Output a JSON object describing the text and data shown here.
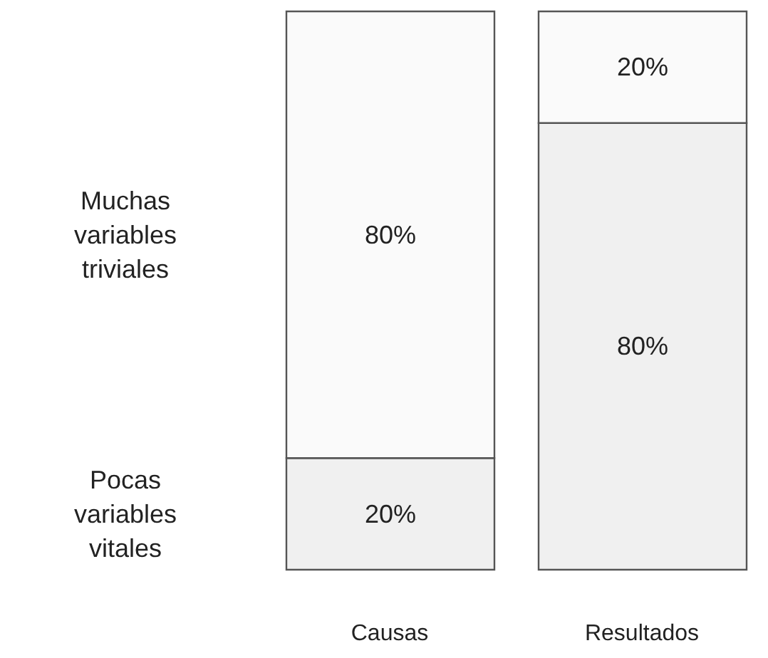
{
  "chart_data": {
    "type": "bar",
    "stacked": true,
    "categories": [
      "Causas",
      "Resultados"
    ],
    "series": [
      {
        "color": "#f0f0f0",
        "values": [
          20,
          80
        ],
        "value_labels": [
          "20%",
          "80%"
        ]
      },
      {
        "color": "#fafafa",
        "values": [
          80,
          20
        ],
        "value_labels": [
          "80%",
          "20%"
        ]
      }
    ],
    "annotations": [
      "Pocas variables vitales",
      "Muchas variables triviales"
    ],
    "legend": false,
    "grid": false
  }
}
